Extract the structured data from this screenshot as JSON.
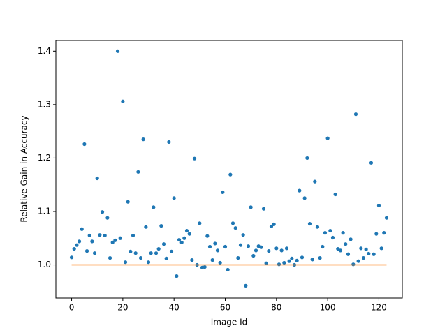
{
  "chart_data": {
    "type": "scatter",
    "x_label": "Image Id",
    "y_label": "Relative Gain in Accuracy",
    "x": [
      0,
      1,
      2,
      3,
      4,
      5,
      6,
      7,
      8,
      9,
      10,
      11,
      12,
      13,
      14,
      15,
      16,
      17,
      18,
      19,
      20,
      21,
      22,
      23,
      24,
      25,
      26,
      27,
      28,
      29,
      30,
      31,
      32,
      33,
      34,
      35,
      36,
      37,
      38,
      39,
      40,
      41,
      42,
      43,
      44,
      45,
      46,
      47,
      48,
      49,
      50,
      51,
      52,
      53,
      54,
      55,
      56,
      57,
      58,
      59,
      60,
      61,
      62,
      63,
      64,
      65,
      66,
      67,
      68,
      69,
      70,
      71,
      72,
      73,
      74,
      75,
      76,
      77,
      78,
      79,
      80,
      81,
      82,
      83,
      84,
      85,
      86,
      87,
      88,
      89,
      90,
      91,
      92,
      93,
      94,
      95,
      96,
      97,
      98,
      99,
      100,
      101,
      102,
      103,
      104,
      105,
      106,
      107,
      108,
      109,
      110,
      111,
      112,
      113,
      114,
      115,
      116,
      117,
      118,
      119,
      120,
      121,
      122,
      123
    ],
    "series": [
      {
        "type": "scatter",
        "color": "#1f77b4",
        "values": [
          1.014,
          1.03,
          1.037,
          1.044,
          1.067,
          1.226,
          1.026,
          1.055,
          1.044,
          1.022,
          1.162,
          1.056,
          1.099,
          1.055,
          1.088,
          1.013,
          1.042,
          1.046,
          1.4,
          1.05,
          1.306,
          1.005,
          1.118,
          1.025,
          1.055,
          1.022,
          1.174,
          1.013,
          1.235,
          1.071,
          1.005,
          1.022,
          1.108,
          1.022,
          1.03,
          1.073,
          1.039,
          1.012,
          1.23,
          1.025,
          1.125,
          0.979,
          1.047,
          1.042,
          1.05,
          1.064,
          1.058,
          1.009,
          1.199,
          1.0,
          1.078,
          0.995,
          0.996,
          1.054,
          1.034,
          1.009,
          1.04,
          1.027,
          1.004,
          1.136,
          1.034,
          0.991,
          1.169,
          1.078,
          1.069,
          1.013,
          1.037,
          1.056,
          0.961,
          1.035,
          1.108,
          1.017,
          1.027,
          1.035,
          1.033,
          1.105,
          1.003,
          1.026,
          1.072,
          1.076,
          1.031,
          1.001,
          1.027,
          1.004,
          1.031,
          1.007,
          1.012,
          1.0,
          1.008,
          1.139,
          1.014,
          1.125,
          1.2,
          1.077,
          1.01,
          1.156,
          1.071,
          1.013,
          1.034,
          1.06,
          1.237,
          1.064,
          1.051,
          1.132,
          1.03,
          1.027,
          1.06,
          1.039,
          1.02,
          1.048,
          1.001,
          1.282,
          1.007,
          1.031,
          1.013,
          1.029,
          1.021,
          1.191,
          1.02,
          1.058,
          1.111,
          1.031,
          1.06,
          1.088
        ]
      },
      {
        "type": "line",
        "color": "#ff7f0e",
        "x": [
          0,
          123
        ],
        "values": [
          1,
          1
        ]
      }
    ],
    "xlim": [
      -6.15,
      129.15
    ],
    "ylim": [
      0.938,
      1.42
    ],
    "xticks": [
      0,
      20,
      40,
      60,
      80,
      100,
      120
    ],
    "yticks": [
      {
        "value": 1,
        "label": "1.0"
      },
      1.1,
      1.2,
      1.3,
      1.4
    ]
  }
}
